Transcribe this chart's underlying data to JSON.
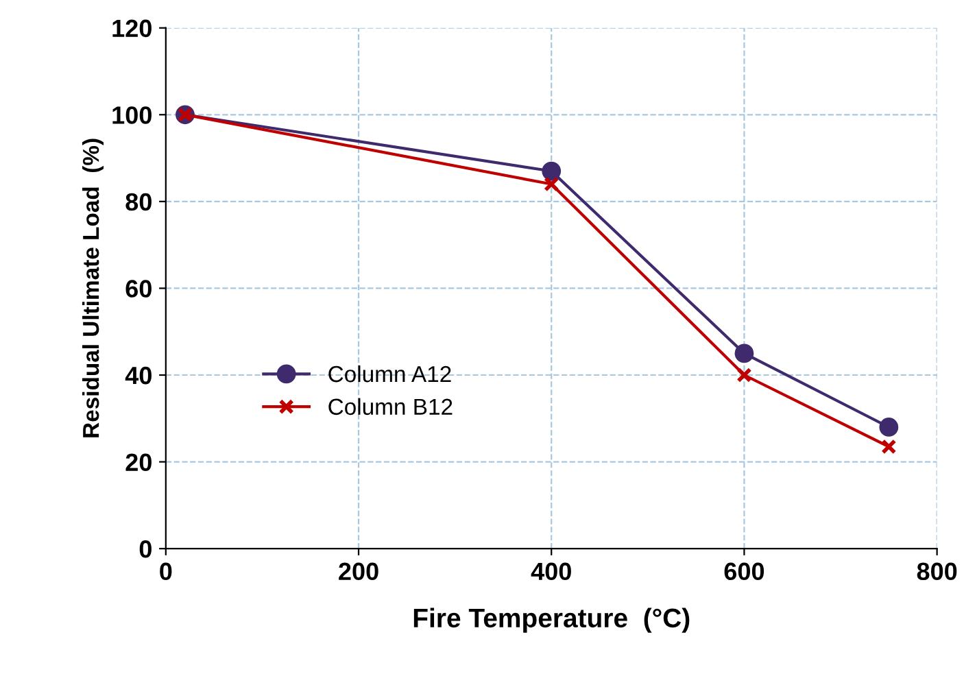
{
  "chart_data": {
    "type": "line",
    "xlabel": "Fire Temperature  (°C)",
    "ylabel": "Residual Ultimate Load  (%)",
    "x": [
      20,
      400,
      600,
      750
    ],
    "series": [
      {
        "name": "Column A12",
        "color": "#3f2a6e",
        "marker": "circle",
        "values": [
          100,
          87,
          45,
          28
        ]
      },
      {
        "name": "Column B12",
        "color": "#c00000",
        "marker": "cross",
        "values": [
          100,
          84,
          40,
          23.5
        ]
      }
    ],
    "xlim": [
      0,
      800
    ],
    "xticks": [
      0,
      200,
      400,
      600,
      800
    ],
    "ylim": [
      0,
      120
    ],
    "yticks": [
      0,
      20,
      40,
      60,
      80,
      100,
      120
    ],
    "grid": true,
    "legend": "left",
    "line_style": "solid"
  }
}
